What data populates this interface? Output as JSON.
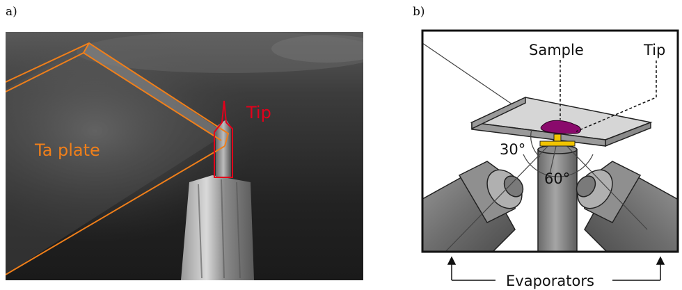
{
  "panels": {
    "a": {
      "label": "a)",
      "annotations": {
        "plate": "Ta plate",
        "tip": "Tip"
      },
      "colors": {
        "plate_outline": "#f07f1a",
        "tip_outline": "#e3001b"
      }
    },
    "b": {
      "label": "b)",
      "labels": {
        "sample": "Sample",
        "tip": "Tip",
        "angle_30": "30°",
        "angle_60": "60°",
        "evaporators": "Evaporators"
      },
      "colors": {
        "sample": "#8a0a6c",
        "holder": "#f2c400",
        "plate": "#c8c8c8"
      }
    }
  }
}
